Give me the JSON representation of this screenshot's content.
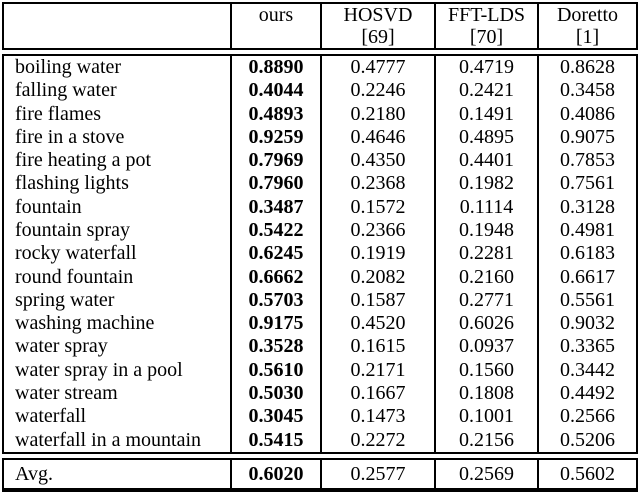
{
  "chart_data": {
    "type": "table",
    "columns": [
      "",
      "ours",
      "HOSVD [69]",
      "FFT-LDS [70]",
      "Doretto [1]"
    ],
    "header": {
      "blank": "",
      "ours": "ours",
      "hosvd": "HOSVD",
      "hosvd_ref": "[69]",
      "fftlds": "FFT-LDS",
      "fftlds_ref": "[70]",
      "doretto": "Doretto",
      "doretto_ref": "[1]"
    },
    "bold_column": "ours",
    "rows": [
      [
        "boiling water",
        "0.8890",
        "0.4777",
        "0.4719",
        "0.8628"
      ],
      [
        "falling water",
        "0.4044",
        "0.2246",
        "0.2421",
        "0.3458"
      ],
      [
        "fire flames",
        "0.4893",
        "0.2180",
        "0.1491",
        "0.4086"
      ],
      [
        "fire in a stove",
        "0.9259",
        "0.4646",
        "0.4895",
        "0.9075"
      ],
      [
        "fire heating a pot",
        "0.7969",
        "0.4350",
        "0.4401",
        "0.7853"
      ],
      [
        "flashing lights",
        "0.7960",
        "0.2368",
        "0.1982",
        "0.7561"
      ],
      [
        "fountain",
        "0.3487",
        "0.1572",
        "0.1114",
        "0.3128"
      ],
      [
        "fountain spray",
        "0.5422",
        "0.2366",
        "0.1948",
        "0.4981"
      ],
      [
        "rocky waterfall",
        "0.6245",
        "0.1919",
        "0.2281",
        "0.6183"
      ],
      [
        "round fountain",
        "0.6662",
        "0.2082",
        "0.2160",
        "0.6617"
      ],
      [
        "spring water",
        "0.5703",
        "0.1587",
        "0.2771",
        "0.5561"
      ],
      [
        "washing machine",
        "0.9175",
        "0.4520",
        "0.6026",
        "0.9032"
      ],
      [
        "water spray",
        "0.3528",
        "0.1615",
        "0.0937",
        "0.3365"
      ],
      [
        "water spray in a pool",
        "0.5610",
        "0.2171",
        "0.1560",
        "0.3442"
      ],
      [
        "water stream",
        "0.5030",
        "0.1667",
        "0.1808",
        "0.4492"
      ],
      [
        "waterfall",
        "0.3045",
        "0.1473",
        "0.1001",
        "0.2566"
      ],
      [
        "waterfall in a mountain",
        "0.5415",
        "0.2272",
        "0.2156",
        "0.5206"
      ]
    ],
    "avg_row": [
      "Avg.",
      "0.6020",
      "0.2577",
      "0.2569",
      "0.5602"
    ],
    "text_color": "#000000",
    "background": "#ffffff",
    "border_color": "#000000"
  }
}
